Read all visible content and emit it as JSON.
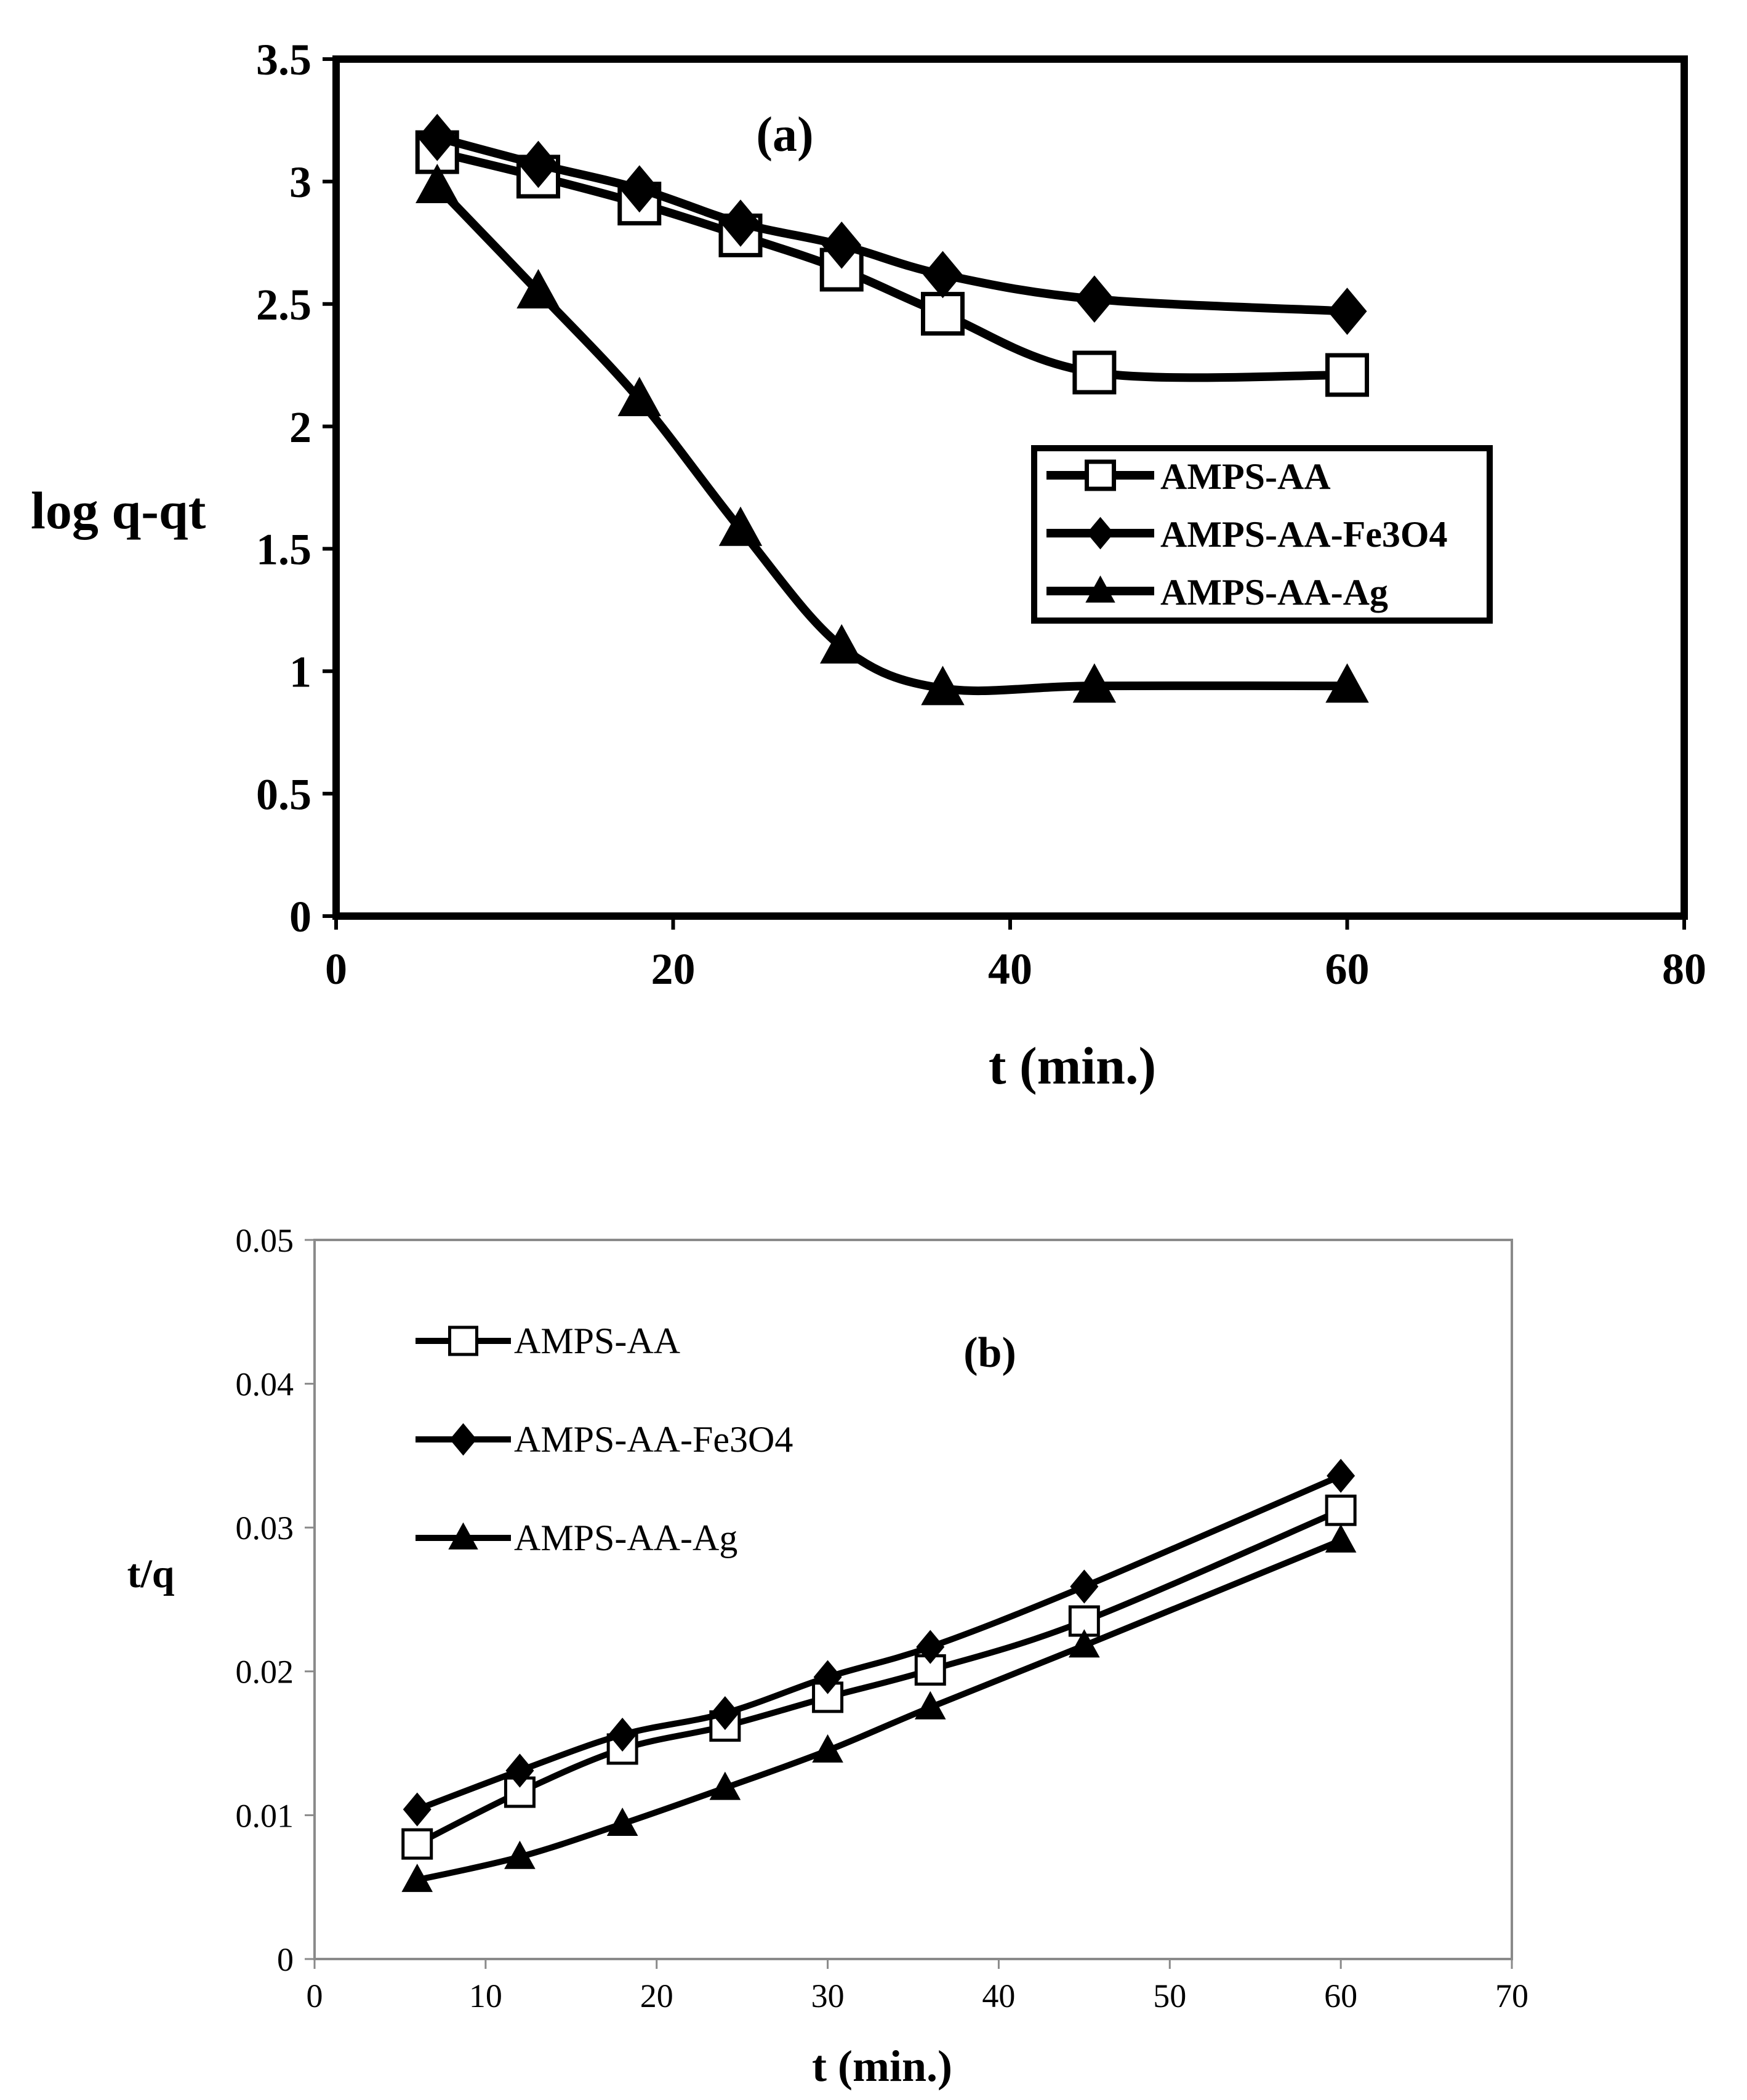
{
  "chart_data": [
    {
      "type": "line",
      "panel_label": "(a)",
      "xlabel": "t (min.)",
      "ylabel": "log q-qt",
      "xlim": [
        0,
        80
      ],
      "ylim": [
        0,
        3.5
      ],
      "x_ticks": [
        0,
        20,
        40,
        60,
        80
      ],
      "y_ticks": [
        0,
        0.5,
        1,
        1.5,
        2,
        2.5,
        3,
        3.5
      ],
      "x_tick_labels": [
        "0",
        "20",
        "40",
        "60",
        "80"
      ],
      "y_tick_labels": [
        "0",
        "0.5",
        "1",
        "1.5",
        "2",
        "2.5",
        "3",
        "3.5"
      ],
      "grid": false,
      "legend_position": "center-right",
      "series": [
        {
          "name": "AMPS-AA",
          "marker": "square-open",
          "color": "#000000",
          "x": [
            6,
            12,
            18,
            24,
            30,
            36,
            45,
            60
          ],
          "y": [
            3.12,
            3.02,
            2.91,
            2.78,
            2.64,
            2.46,
            2.22,
            2.21
          ]
        },
        {
          "name": "AMPS-AA-Fe3O4",
          "marker": "diamond-filled",
          "color": "#000000",
          "x": [
            6,
            12,
            18,
            24,
            30,
            36,
            45,
            60
          ],
          "y": [
            3.18,
            3.07,
            2.97,
            2.83,
            2.74,
            2.62,
            2.52,
            2.47
          ]
        },
        {
          "name": "AMPS-AA-Ag",
          "marker": "triangle-filled",
          "color": "#000000",
          "x": [
            6,
            12,
            18,
            24,
            30,
            36,
            45,
            60
          ],
          "y": [
            2.98,
            2.55,
            2.11,
            1.58,
            1.1,
            0.93,
            0.94,
            0.94
          ]
        }
      ]
    },
    {
      "type": "line",
      "panel_label": "(b)",
      "xlabel": "t (min.)",
      "ylabel": "t/q",
      "xlim": [
        0,
        70
      ],
      "ylim": [
        0,
        0.05
      ],
      "x_ticks": [
        0,
        10,
        20,
        30,
        40,
        50,
        60,
        70
      ],
      "y_ticks": [
        0,
        0.01,
        0.02,
        0.03,
        0.04,
        0.05
      ],
      "x_tick_labels": [
        "0",
        "10",
        "20",
        "30",
        "40",
        "50",
        "60",
        "70"
      ],
      "y_tick_labels": [
        "0",
        "0.01",
        "0.02",
        "0.03",
        "0.04",
        "0.05"
      ],
      "grid": false,
      "legend_position": "top-left",
      "series": [
        {
          "name": "AMPS-AA",
          "marker": "square-open",
          "color": "#000000",
          "x": [
            6,
            12,
            18,
            24,
            30,
            36,
            45,
            60
          ],
          "y": [
            0.008,
            0.0116,
            0.0146,
            0.0162,
            0.0182,
            0.0201,
            0.0235,
            0.0312
          ]
        },
        {
          "name": "AMPS-AA-Fe3O4",
          "marker": "diamond-filled",
          "color": "#000000",
          "x": [
            6,
            12,
            18,
            24,
            30,
            36,
            45,
            60
          ],
          "y": [
            0.0104,
            0.0131,
            0.0156,
            0.0171,
            0.0196,
            0.0217,
            0.0259,
            0.0336
          ]
        },
        {
          "name": "AMPS-AA-Ag",
          "marker": "triangle-filled",
          "color": "#000000",
          "x": [
            6,
            12,
            18,
            24,
            30,
            36,
            45,
            60
          ],
          "y": [
            0.0055,
            0.0071,
            0.0094,
            0.0119,
            0.0145,
            0.0175,
            0.0218,
            0.0291
          ]
        }
      ]
    }
  ]
}
